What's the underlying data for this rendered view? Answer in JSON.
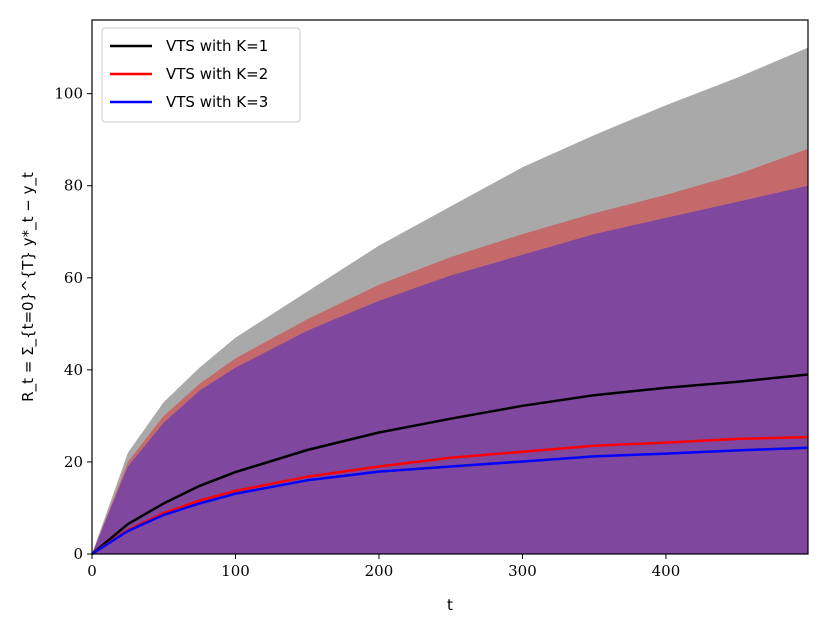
{
  "chart_data": {
    "type": "area",
    "xlabel": "t",
    "ylabel": "R_t = Σ_{t=0}^{T} y*_t − y_t",
    "xlim": [
      0,
      499
    ],
    "ylim": [
      0,
      116
    ],
    "xticks": [
      0,
      100,
      200,
      300,
      400
    ],
    "yticks": [
      0,
      20,
      40,
      60,
      80,
      100
    ],
    "grid": false,
    "legend_position": "top-left",
    "x": [
      0,
      25,
      50,
      75,
      100,
      150,
      200,
      250,
      300,
      350,
      400,
      450,
      499
    ],
    "series": [
      {
        "name": "VTS with K=1",
        "color": "#000000",
        "band_color": "#a9a9a9",
        "mean": [
          0,
          6.5,
          11.0,
          14.8,
          17.8,
          22.6,
          26.4,
          29.4,
          32.2,
          34.5,
          36.1,
          37.4,
          39.0
        ],
        "upper": [
          0,
          22,
          33,
          40.5,
          47,
          57,
          67,
          75.5,
          84,
          91,
          97.5,
          103.5,
          110
        ]
      },
      {
        "name": "VTS with K=2",
        "color": "#ff0000",
        "band_color": "#c46a6a",
        "mean": [
          0,
          5.2,
          8.9,
          11.6,
          13.7,
          16.8,
          19.0,
          20.9,
          22.2,
          23.5,
          24.2,
          25.0,
          25.4
        ],
        "upper": [
          0,
          20,
          30,
          37,
          42.5,
          51,
          58.5,
          64.5,
          69.5,
          74,
          78,
          82.5,
          88
        ]
      },
      {
        "name": "VTS with K=3",
        "color": "#0000ff",
        "band_color": "#7f479e",
        "mean": [
          0,
          5.0,
          8.5,
          11.0,
          13.1,
          16.0,
          17.9,
          19.0,
          20.1,
          21.2,
          21.8,
          22.5,
          23.1
        ],
        "upper": [
          0,
          19,
          28.5,
          35.5,
          40.5,
          48.5,
          55,
          60.5,
          65,
          69.5,
          73,
          76.5,
          80
        ]
      }
    ]
  }
}
